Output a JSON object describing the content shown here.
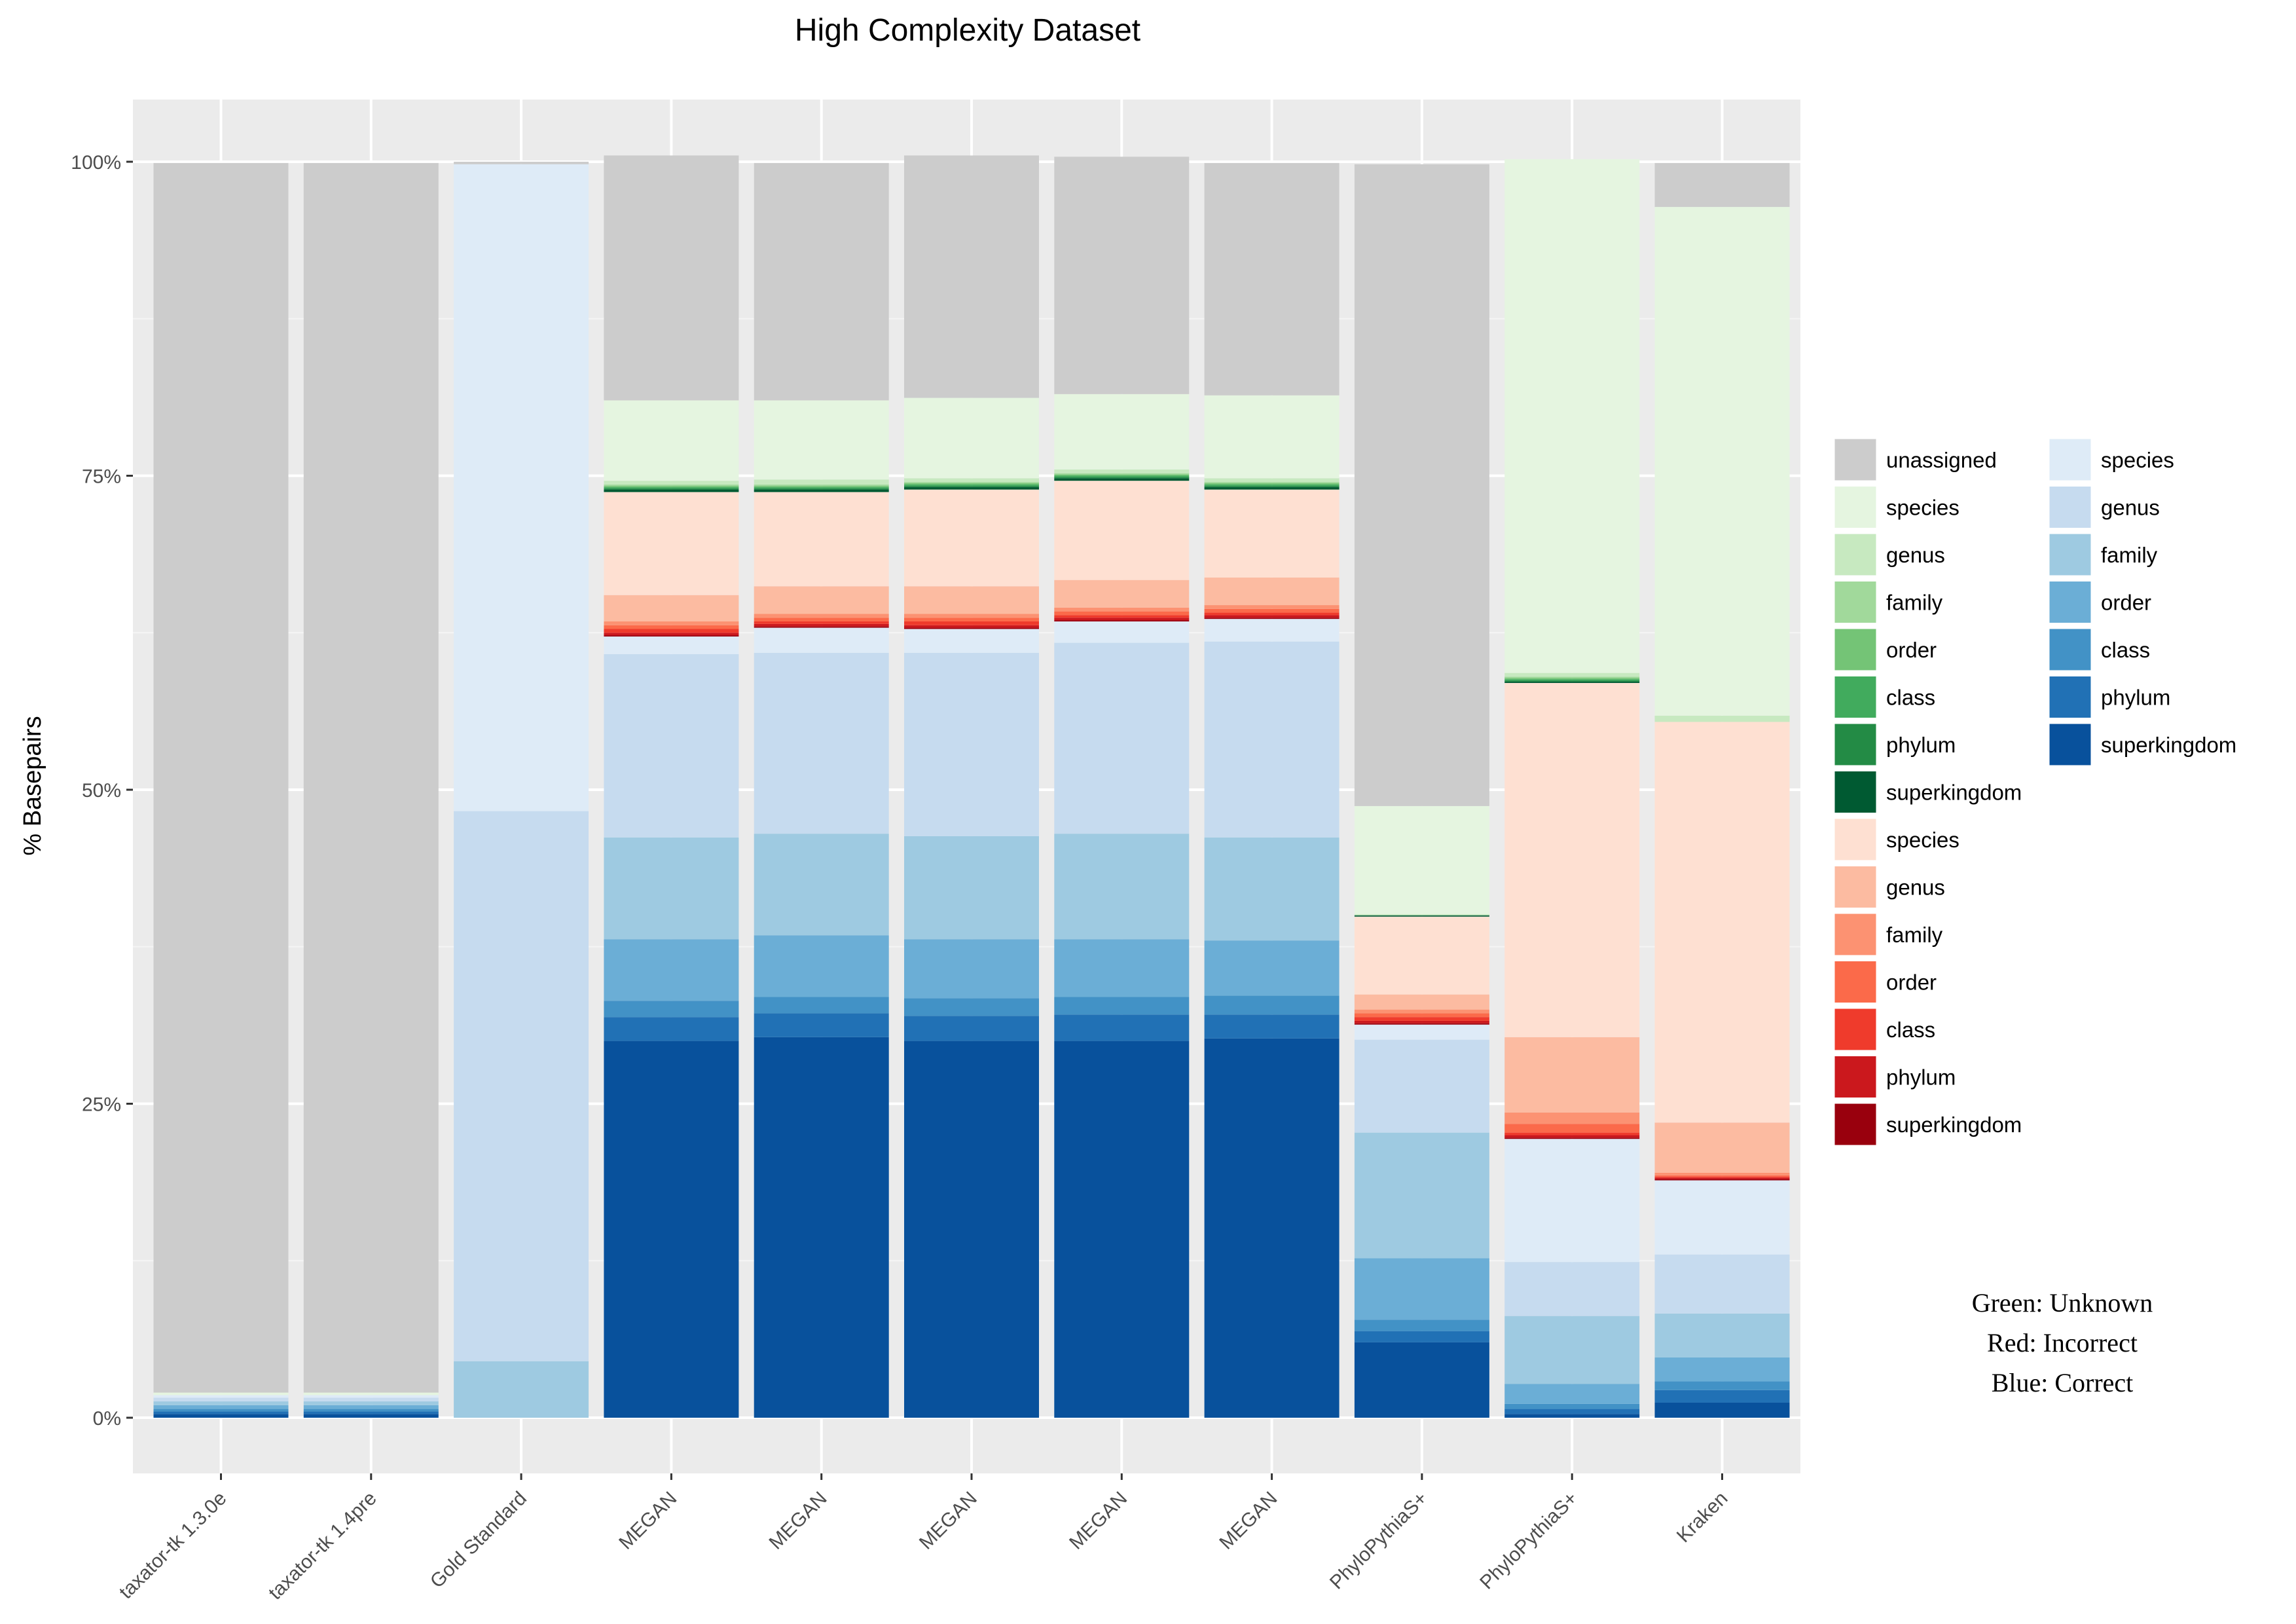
{
  "chart_data": {
    "type": "bar",
    "stacked": true,
    "title": "High Complexity Dataset",
    "xlabel": "",
    "ylabel": "% Basepairs",
    "ylim": [
      0,
      100
    ],
    "yticks": [
      "0%",
      "25%",
      "50%",
      "75%",
      "100%"
    ],
    "ytick_values": [
      0,
      25,
      50,
      75,
      100
    ],
    "grid": true,
    "legend_position": "right",
    "categories": [
      "taxator-tk 1.3.0e",
      "taxator-tk 1.4pre",
      "Gold Standard",
      "MEGAN",
      "MEGAN",
      "MEGAN",
      "MEGAN",
      "MEGAN",
      "PhyloPythiaS+",
      "PhyloPythiaS+",
      "Kraken"
    ],
    "series": [
      {
        "name": "superkingdom",
        "color": "#08519c",
        "values": [
          0.3,
          0.3,
          0,
          30.0,
          30.3,
          30.0,
          30.0,
          30.2,
          6.0,
          0.3,
          1.2
        ]
      },
      {
        "name": "phylum",
        "color": "#2171b5",
        "values": [
          0.2,
          0.2,
          0,
          1.9,
          1.9,
          2.0,
          2.1,
          1.9,
          0.9,
          0.4,
          1.0
        ]
      },
      {
        "name": "class",
        "color": "#4292c6",
        "values": [
          0.2,
          0.2,
          0,
          1.3,
          1.3,
          1.4,
          1.4,
          1.5,
          0.9,
          0.4,
          0.7
        ]
      },
      {
        "name": "order",
        "color": "#6baed6",
        "values": [
          0.3,
          0.3,
          0,
          4.9,
          4.9,
          4.7,
          4.6,
          4.4,
          4.9,
          1.6,
          1.9
        ]
      },
      {
        "name": "family",
        "color": "#9ecae1",
        "values": [
          0.3,
          0.3,
          4.5,
          8.1,
          8.1,
          8.2,
          8.4,
          8.2,
          10.0,
          5.4,
          3.5
        ]
      },
      {
        "name": "genus",
        "color": "#c6dbef",
        "values": [
          0.3,
          0.3,
          43.8,
          14.6,
          14.4,
          14.6,
          15.2,
          15.6,
          7.4,
          4.3,
          4.7
        ]
      },
      {
        "name": "species",
        "color": "#deebf7",
        "values": [
          0.2,
          0.2,
          51.5,
          1.4,
          2.0,
          1.9,
          1.7,
          1.8,
          1.2,
          9.8,
          5.9
        ]
      },
      {
        "name": "superkingdom",
        "color": "#99000d",
        "values": [
          0,
          0,
          0,
          0.1,
          0.1,
          0.1,
          0.1,
          0.1,
          0.1,
          0.1,
          0.1
        ]
      },
      {
        "name": "phylum",
        "color": "#cb181d",
        "values": [
          0,
          0,
          0,
          0.2,
          0.2,
          0.2,
          0.2,
          0.2,
          0.2,
          0.2,
          0.1
        ]
      },
      {
        "name": "class",
        "color": "#ef3b2c",
        "values": [
          0,
          0,
          0,
          0.3,
          0.2,
          0.3,
          0.2,
          0.2,
          0.3,
          0.2,
          0.1
        ]
      },
      {
        "name": "order",
        "color": "#fb6a4a",
        "values": [
          0,
          0,
          0,
          0.3,
          0.3,
          0.3,
          0.3,
          0.3,
          0.3,
          0.7,
          0.1
        ]
      },
      {
        "name": "family",
        "color": "#fc9272",
        "values": [
          0,
          0,
          0,
          0.3,
          0.3,
          0.3,
          0.3,
          0.3,
          0.3,
          0.9,
          0.2
        ]
      },
      {
        "name": "genus",
        "color": "#fcbba1",
        "values": [
          0,
          0,
          0,
          2.1,
          2.2,
          2.2,
          2.2,
          2.2,
          1.2,
          6.0,
          4.0
        ]
      },
      {
        "name": "species",
        "color": "#fee0d2",
        "values": [
          0,
          0,
          0,
          8.2,
          7.5,
          7.7,
          7.9,
          7.0,
          6.2,
          28.2,
          31.9
        ]
      },
      {
        "name": "superkingdom",
        "color": "#005a32",
        "values": [
          0,
          0,
          0,
          0.2,
          0.2,
          0.2,
          0.2,
          0.2,
          0.1,
          0.1,
          0
        ]
      },
      {
        "name": "phylum",
        "color": "#238b45",
        "values": [
          0,
          0,
          0,
          0.1,
          0.1,
          0.1,
          0.1,
          0.1,
          0,
          0.1,
          0
        ]
      },
      {
        "name": "class",
        "color": "#41ab5d",
        "values": [
          0,
          0,
          0,
          0.1,
          0.1,
          0.1,
          0.1,
          0.1,
          0,
          0.1,
          0
        ]
      },
      {
        "name": "order",
        "color": "#74c476",
        "values": [
          0,
          0,
          0,
          0.1,
          0.1,
          0.1,
          0.1,
          0.1,
          0,
          0.1,
          0
        ]
      },
      {
        "name": "family",
        "color": "#a1d99b",
        "values": [
          0,
          0,
          0,
          0.1,
          0.1,
          0.1,
          0.1,
          0.1,
          0,
          0.1,
          0
        ]
      },
      {
        "name": "genus",
        "color": "#c7e9c0",
        "values": [
          0,
          0,
          0,
          0.3,
          0.4,
          0.3,
          0.3,
          0.3,
          0.1,
          0.3,
          0.5
        ]
      },
      {
        "name": "species",
        "color": "#e5f5e0",
        "values": [
          0.2,
          0.2,
          0,
          6.4,
          6.3,
          6.4,
          6.0,
          6.6,
          8.6,
          40.9,
          40.5
        ]
      },
      {
        "name": "unassigned",
        "color": "#cccccc",
        "values": [
          97.9,
          97.9,
          0.2,
          19.5,
          18.9,
          19.3,
          18.9,
          18.5,
          51.1,
          0.0,
          3.5
        ]
      }
    ],
    "legend": {
      "col1": [
        {
          "label": "unassigned",
          "color": "#cccccc"
        },
        {
          "label": "species",
          "color": "#e5f5e0"
        },
        {
          "label": "genus",
          "color": "#c7e9c0"
        },
        {
          "label": "family",
          "color": "#a1d99b"
        },
        {
          "label": "order",
          "color": "#74c476"
        },
        {
          "label": "class",
          "color": "#41ab5d"
        },
        {
          "label": "phylum",
          "color": "#238b45"
        },
        {
          "label": "superkingdom",
          "color": "#005a32"
        },
        {
          "label": "species",
          "color": "#fee0d2"
        },
        {
          "label": "genus",
          "color": "#fcbba1"
        },
        {
          "label": "family",
          "color": "#fc9272"
        },
        {
          "label": "order",
          "color": "#fb6a4a"
        },
        {
          "label": "class",
          "color": "#ef3b2c"
        },
        {
          "label": "phylum",
          "color": "#cb181d"
        },
        {
          "label": "superkingdom",
          "color": "#99000d"
        }
      ],
      "col2": [
        {
          "label": "species",
          "color": "#deebf7"
        },
        {
          "label": "genus",
          "color": "#c6dbef"
        },
        {
          "label": "family",
          "color": "#9ecae1"
        },
        {
          "label": "order",
          "color": "#6baed6"
        },
        {
          "label": "class",
          "color": "#4292c6"
        },
        {
          "label": "phylum",
          "color": "#2171b5"
        },
        {
          "label": "superkingdom",
          "color": "#08519c"
        }
      ]
    },
    "annotations": [
      "Green: Unknown",
      "Red: Incorrect",
      "Blue: Correct"
    ]
  }
}
